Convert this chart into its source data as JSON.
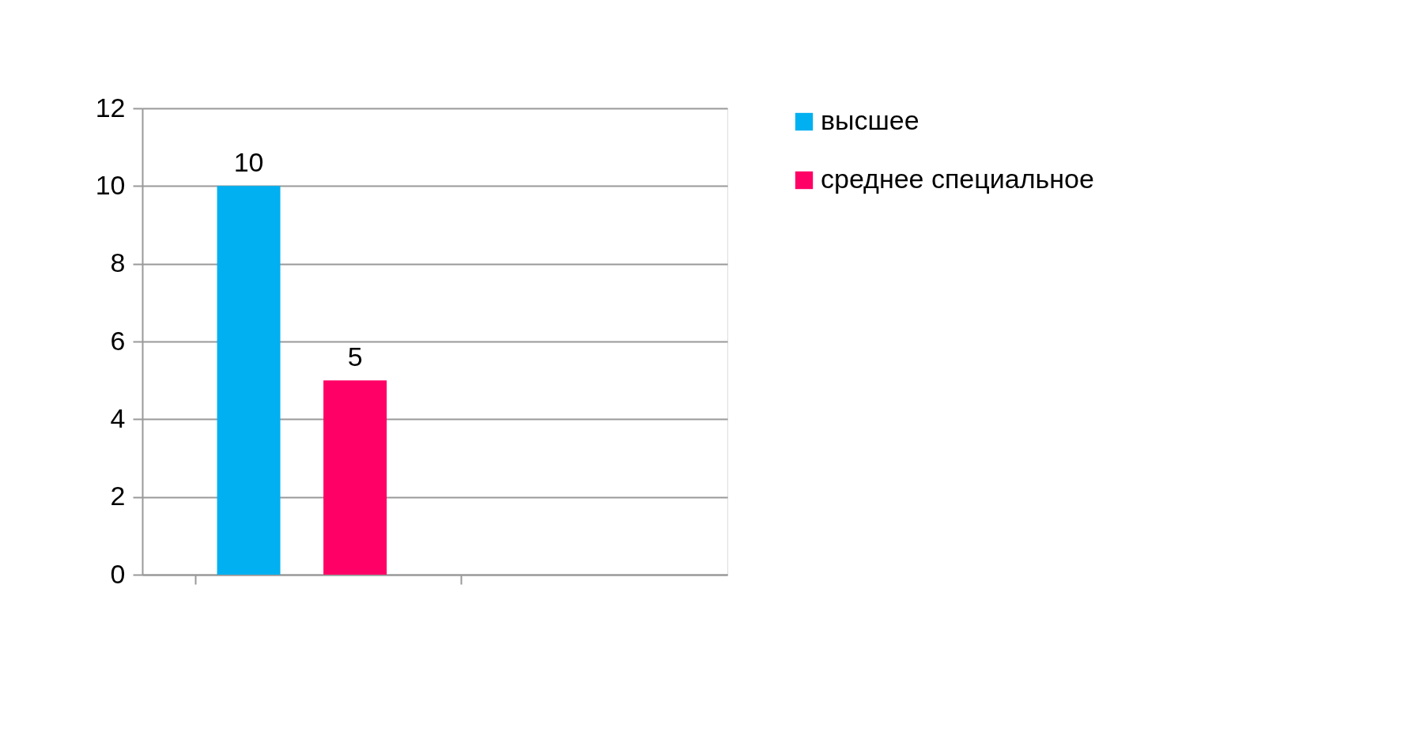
{
  "chart_data": {
    "type": "bar",
    "categories": [
      null,
      null
    ],
    "series": [
      {
        "name": "высшее",
        "color": "#00b0f0",
        "values": [
          10,
          null
        ]
      },
      {
        "name": "среднее специальное",
        "color": "#ff0066",
        "values": [
          5,
          null
        ]
      }
    ],
    "ylim": [
      0,
      12
    ],
    "yticks": [
      0,
      2,
      4,
      6,
      8,
      10,
      12
    ],
    "grid": "y",
    "legend": "right",
    "data_labels": true
  }
}
